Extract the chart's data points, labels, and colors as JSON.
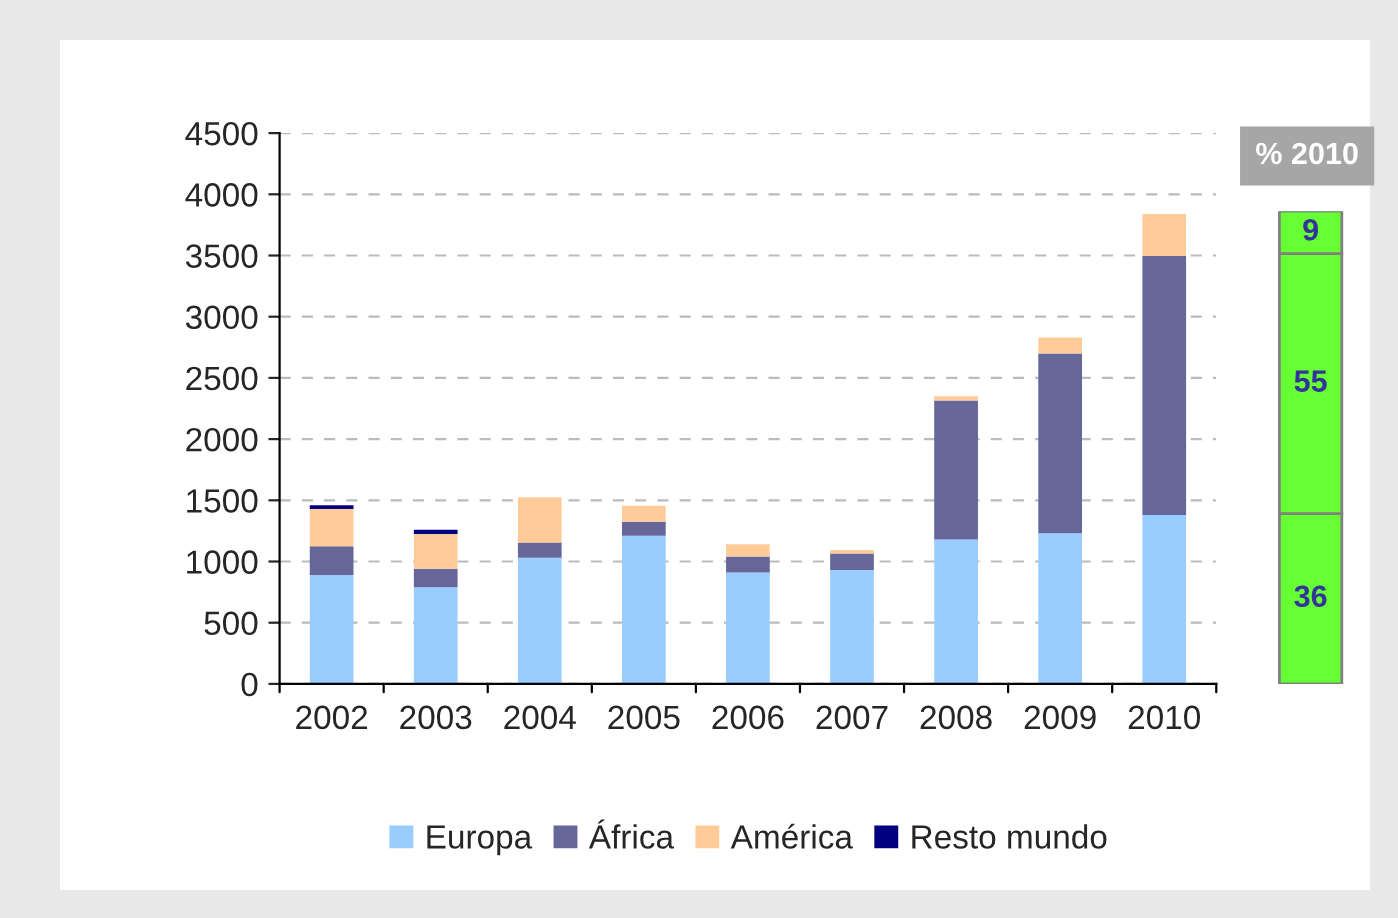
{
  "chart_data": [
    {
      "type": "bar",
      "stacked": true,
      "categories": [
        "2002",
        "2003",
        "2004",
        "2005",
        "2006",
        "2007",
        "2008",
        "2009",
        "2010"
      ],
      "series": [
        {
          "name": "Europa",
          "color": "#99ccff",
          "values": [
            890,
            790,
            1030,
            1210,
            910,
            930,
            1180,
            1230,
            1380
          ]
        },
        {
          "name": "África",
          "color": "#666699",
          "values": [
            235,
            150,
            125,
            115,
            130,
            135,
            1135,
            1470,
            2115
          ]
        },
        {
          "name": "América",
          "color": "#ffcc99",
          "values": [
            305,
            285,
            370,
            130,
            100,
            30,
            35,
            130,
            345
          ]
        },
        {
          "name": "Resto mundo",
          "color": "#000080",
          "values": [
            30,
            35,
            null,
            null,
            null,
            null,
            null,
            null,
            null
          ]
        }
      ],
      "ylim": [
        0,
        4500
      ],
      "yticks": [
        0,
        500,
        1000,
        1500,
        2000,
        2500,
        3000,
        3500,
        4000,
        4500
      ],
      "grid": "y",
      "legend": "bottom"
    },
    {
      "type": "bar",
      "stacked": true,
      "title": "% 2010",
      "categories": [
        null
      ],
      "data_labels": true,
      "series": [
        {
          "color": "#66ff33",
          "values": [
            36
          ]
        },
        {
          "color": "#66ff33",
          "values": [
            55
          ]
        },
        {
          "color": "#66ff33",
          "values": [
            9
          ]
        }
      ]
    }
  ]
}
